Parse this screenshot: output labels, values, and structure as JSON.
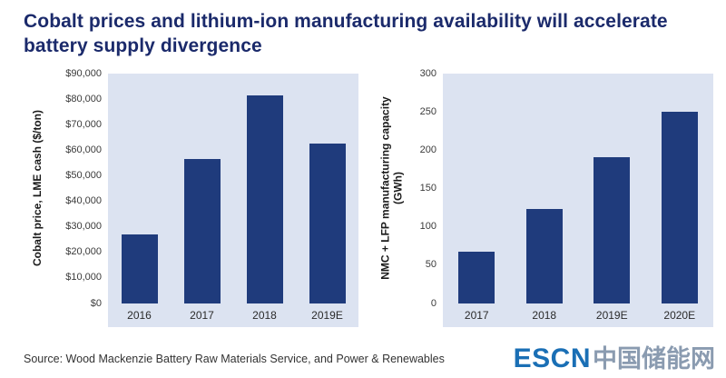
{
  "title": "Cobalt prices and lithium-ion manufacturing availability will accelerate battery supply divergence",
  "source": "Source: Wood Mackenzie Battery Raw Materials Service, and Power & Renewables",
  "logo": {
    "escn": "ESCN",
    "chinese": "中国储能网"
  },
  "colors": {
    "bar": "#1f3b7c",
    "plot_bg": "#dce3f1",
    "title": "#1b2a6b",
    "logo_blue": "#1a6fb5",
    "logo_gray": "#8a9bb0"
  },
  "chart_data": [
    {
      "type": "bar",
      "categories": [
        "2016",
        "2017",
        "2018",
        "2019E"
      ],
      "values": [
        27000,
        56500,
        81500,
        62500
      ],
      "title": "",
      "xlabel": "",
      "ylabel": "Cobalt price, LME cash ($/ton)",
      "ylim": [
        0,
        90000
      ],
      "ytick_step": 10000,
      "ytick_format": "currency",
      "grid": false,
      "legend": "none"
    },
    {
      "type": "bar",
      "categories": [
        "2017",
        "2018",
        "2019E",
        "2020E"
      ],
      "values": [
        67,
        123,
        190,
        250
      ],
      "title": "",
      "xlabel": "",
      "ylabel": "NMC + LFP manufacturing capacity\n(GWh)",
      "ylim": [
        0,
        300
      ],
      "ytick_step": 50,
      "ytick_format": "number",
      "grid": false,
      "legend": "none"
    }
  ]
}
